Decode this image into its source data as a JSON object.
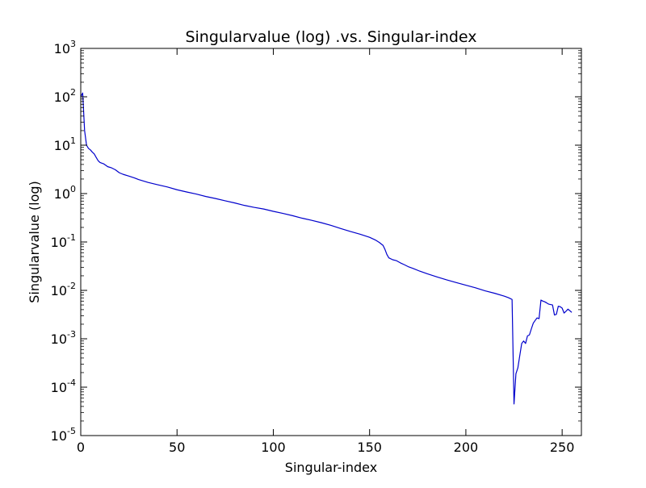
{
  "chart_data": {
    "type": "line",
    "title": "Singularvalue (log) .vs. Singular-index",
    "xlabel": "Singular-index",
    "ylabel": "Singularvalue (log)",
    "xlim": [
      0,
      260
    ],
    "ylim": [
      1e-05,
      1000
    ],
    "y_scale": "log",
    "grid": false,
    "x_ticks": [
      {
        "value": 0,
        "label": "0"
      },
      {
        "value": 50,
        "label": "50"
      },
      {
        "value": 100,
        "label": "100"
      },
      {
        "value": 150,
        "label": "150"
      },
      {
        "value": 200,
        "label": "200"
      },
      {
        "value": 250,
        "label": "250"
      }
    ],
    "y_ticks": [
      {
        "value": 1e-05,
        "base": "10",
        "exp": "-5"
      },
      {
        "value": 0.0001,
        "base": "10",
        "exp": "-4"
      },
      {
        "value": 0.001,
        "base": "10",
        "exp": "-3"
      },
      {
        "value": 0.01,
        "base": "10",
        "exp": "-2"
      },
      {
        "value": 0.1,
        "base": "10",
        "exp": "-1"
      },
      {
        "value": 1,
        "base": "10",
        "exp": "0"
      },
      {
        "value": 10,
        "base": "10",
        "exp": "1"
      },
      {
        "value": 100,
        "base": "10",
        "exp": "2"
      },
      {
        "value": 1000,
        "base": "10",
        "exp": "3"
      }
    ],
    "series": [
      {
        "color": "#0000cc",
        "points": [
          [
            0,
            100
          ],
          [
            1,
            120
          ],
          [
            2,
            20
          ],
          [
            3,
            10
          ],
          [
            4,
            8.6
          ],
          [
            5,
            8
          ],
          [
            6,
            7.2
          ],
          [
            7,
            6.6
          ],
          [
            8,
            5.6
          ],
          [
            9,
            4.8
          ],
          [
            10,
            4.4
          ],
          [
            12,
            4.1
          ],
          [
            14,
            3.6
          ],
          [
            16,
            3.4
          ],
          [
            18,
            3.1
          ],
          [
            20,
            2.7
          ],
          [
            22,
            2.5
          ],
          [
            25,
            2.3
          ],
          [
            28,
            2.1
          ],
          [
            30,
            1.95
          ],
          [
            35,
            1.7
          ],
          [
            40,
            1.52
          ],
          [
            45,
            1.37
          ],
          [
            50,
            1.2
          ],
          [
            55,
            1.08
          ],
          [
            60,
            0.98
          ],
          [
            65,
            0.87
          ],
          [
            70,
            0.79
          ],
          [
            75,
            0.71
          ],
          [
            80,
            0.64
          ],
          [
            85,
            0.57
          ],
          [
            90,
            0.52
          ],
          [
            95,
            0.48
          ],
          [
            100,
            0.43
          ],
          [
            105,
            0.39
          ],
          [
            110,
            0.35
          ],
          [
            115,
            0.31
          ],
          [
            120,
            0.28
          ],
          [
            125,
            0.25
          ],
          [
            130,
            0.22
          ],
          [
            135,
            0.19
          ],
          [
            140,
            0.165
          ],
          [
            145,
            0.145
          ],
          [
            150,
            0.125
          ],
          [
            153,
            0.11
          ],
          [
            155,
            0.098
          ],
          [
            157,
            0.085
          ],
          [
            158,
            0.07
          ],
          [
            159,
            0.055
          ],
          [
            160,
            0.047
          ],
          [
            162,
            0.043
          ],
          [
            164,
            0.041
          ],
          [
            166,
            0.037
          ],
          [
            168,
            0.034
          ],
          [
            170,
            0.031
          ],
          [
            173,
            0.028
          ],
          [
            176,
            0.025
          ],
          [
            180,
            0.022
          ],
          [
            185,
            0.019
          ],
          [
            190,
            0.0165
          ],
          [
            195,
            0.0145
          ],
          [
            200,
            0.0128
          ],
          [
            205,
            0.0113
          ],
          [
            210,
            0.0098
          ],
          [
            215,
            0.0087
          ],
          [
            220,
            0.0076
          ],
          [
            222,
            0.0071
          ],
          [
            223,
            0.0068
          ],
          [
            224,
            0.0065
          ],
          [
            225,
            4.5e-05
          ],
          [
            226,
            0.00019
          ],
          [
            227,
            0.00025
          ],
          [
            228,
            0.00045
          ],
          [
            229,
            0.0008
          ],
          [
            230,
            0.0009
          ],
          [
            231,
            0.0008
          ],
          [
            232,
            0.00115
          ],
          [
            233,
            0.0012
          ],
          [
            234,
            0.0016
          ],
          [
            235,
            0.0021
          ],
          [
            236,
            0.0024
          ],
          [
            237,
            0.0027
          ],
          [
            238,
            0.0026
          ],
          [
            239,
            0.0063
          ],
          [
            240,
            0.006
          ],
          [
            241,
            0.0058
          ],
          [
            242,
            0.0055
          ],
          [
            243,
            0.0052
          ],
          [
            244,
            0.0051
          ],
          [
            245,
            0.005
          ],
          [
            246,
            0.0031
          ],
          [
            247,
            0.0032
          ],
          [
            248,
            0.0047
          ],
          [
            249,
            0.0046
          ],
          [
            250,
            0.0043
          ],
          [
            251,
            0.0034
          ],
          [
            252,
            0.0037
          ],
          [
            253,
            0.0041
          ],
          [
            254,
            0.0038
          ],
          [
            255,
            0.0035
          ]
        ]
      }
    ]
  }
}
